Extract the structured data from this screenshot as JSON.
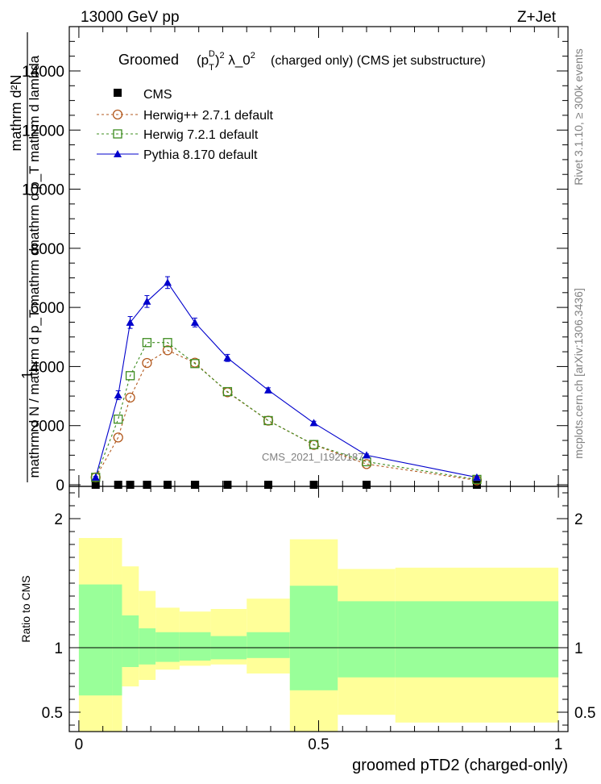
{
  "header": {
    "energy_label": "13000 GeV pp",
    "process_label": "Z+Jet",
    "plot_title_main": "Groomed",
    "plot_title_formula": "(p_T^D)^2 λ_0^2",
    "plot_title_rest": "(charged only) (CMS jet substructure)",
    "watermark": "CMS_2021_I1920187"
  },
  "side_text": {
    "rivet": "Rivet 3.1.10, ≥ 300k events",
    "mcplots": "mcplots.cern.ch [arXiv:1306.3436]"
  },
  "axes": {
    "main_ylabel_line1": "mathrm d²N",
    "main_ylabel_line2": "mathrm d p_T mathrm d lambda",
    "main_ylabel_full": "mathrm d N / mathrm d p_T mathrm d",
    "main_ylabel_prefix": "1",
    "ratio_ylabel": "Ratio to CMS",
    "xlabel": "groomed pTD2 (charged-only)"
  },
  "colors": {
    "cms": "#000000",
    "herwigpp": "#b35a1f",
    "herwig7": "#3d8c1f",
    "pythia": "#0000cc",
    "band_green": "#99ff99",
    "band_yellow": "#ffff99"
  },
  "chart_data": [
    {
      "type": "line",
      "title": "Groomed (p_T^D)^2 λ_0^2 (charged only) (CMS jet substructure)",
      "xlabel": "groomed pTD2 (charged-only)",
      "ylabel": "1 / N dN / dp_T dλ",
      "xlim": [
        -0.02,
        1.02
      ],
      "ylim": [
        0,
        15500
      ],
      "yticks": [
        0,
        2000,
        4000,
        6000,
        8000,
        10000,
        12000,
        14000
      ],
      "ytick_labels": [
        "0",
        "2000",
        "4000",
        "6000",
        "8000",
        "10000",
        "12000",
        "14000"
      ],
      "xticks": [
        0,
        0.5,
        1
      ],
      "legend": [
        "CMS",
        "Herwig++ 2.7.1 default",
        "Herwig 7.2.1 default",
        "Pythia 8.170 default"
      ],
      "legend_position": "top-left",
      "series": [
        {
          "name": "CMS",
          "marker": "square",
          "x": [
            0.035,
            0.082,
            0.107,
            0.142,
            0.185,
            0.242,
            0.31,
            0.395,
            0.49,
            0.6,
            0.83
          ],
          "y": [
            0,
            0,
            0,
            0,
            0,
            0,
            0,
            0,
            0,
            0,
            0
          ]
        },
        {
          "name": "Herwig++ 2.7.1 default",
          "marker": "open-circle",
          "x": [
            0.035,
            0.082,
            0.107,
            0.142,
            0.185,
            0.242,
            0.31,
            0.395,
            0.49,
            0.6,
            0.83
          ],
          "y": [
            250,
            1600,
            2950,
            4120,
            4550,
            4130,
            3130,
            2170,
            1350,
            700,
            150
          ]
        },
        {
          "name": "Herwig 7.2.1 default",
          "marker": "open-square",
          "x": [
            0.035,
            0.082,
            0.107,
            0.142,
            0.185,
            0.242,
            0.31,
            0.395,
            0.49,
            0.6,
            0.83
          ],
          "y": [
            250,
            2220,
            3690,
            4810,
            4810,
            4100,
            3150,
            2170,
            1360,
            780,
            180
          ]
        },
        {
          "name": "Pythia 8.170 default",
          "marker": "filled-triangle",
          "x": [
            0.035,
            0.082,
            0.107,
            0.142,
            0.185,
            0.242,
            0.31,
            0.395,
            0.49,
            0.6,
            0.83
          ],
          "y": [
            250,
            3030,
            5490,
            6200,
            6840,
            5490,
            4290,
            3200,
            2090,
            1000,
            250
          ],
          "yerr": [
            30,
            150,
            200,
            200,
            200,
            150,
            120,
            80,
            60,
            40,
            20
          ]
        }
      ]
    },
    {
      "type": "area",
      "ylabel": "Ratio to CMS",
      "xlabel": "groomed pTD2 (charged-only)",
      "xlim": [
        -0.02,
        1.02
      ],
      "ylim": [
        0.35,
        2.25
      ],
      "yticks": [
        0.5,
        1,
        2
      ],
      "ytick_labels": [
        "0.5",
        "1",
        "2"
      ],
      "xticks": [
        0,
        0.5,
        1
      ],
      "xtick_labels": [
        "0",
        "0.5",
        "1"
      ],
      "reference_line": 1,
      "bins": [
        [
          0,
          0.07
        ],
        [
          0.07,
          0.09
        ],
        [
          0.09,
          0.125
        ],
        [
          0.125,
          0.16
        ],
        [
          0.16,
          0.21
        ],
        [
          0.21,
          0.275
        ],
        [
          0.275,
          0.35
        ],
        [
          0.35,
          0.44
        ],
        [
          0.44,
          0.54
        ],
        [
          0.54,
          0.66
        ],
        [
          0.66,
          1.0
        ]
      ],
      "green_band": {
        "low": [
          0.63,
          0.63,
          0.85,
          0.87,
          0.89,
          0.9,
          0.91,
          0.92,
          0.67,
          0.77,
          0.77
        ],
        "high": [
          1.49,
          1.49,
          1.25,
          1.15,
          1.12,
          1.12,
          1.09,
          1.12,
          1.48,
          1.36,
          1.36
        ]
      },
      "yellow_band": {
        "low": [
          0.35,
          0.35,
          0.7,
          0.75,
          0.83,
          0.86,
          0.87,
          0.8,
          0.35,
          0.48,
          0.42
        ],
        "high": [
          1.85,
          1.85,
          1.63,
          1.44,
          1.31,
          1.28,
          1.3,
          1.38,
          1.84,
          1.61,
          1.62
        ]
      }
    }
  ]
}
